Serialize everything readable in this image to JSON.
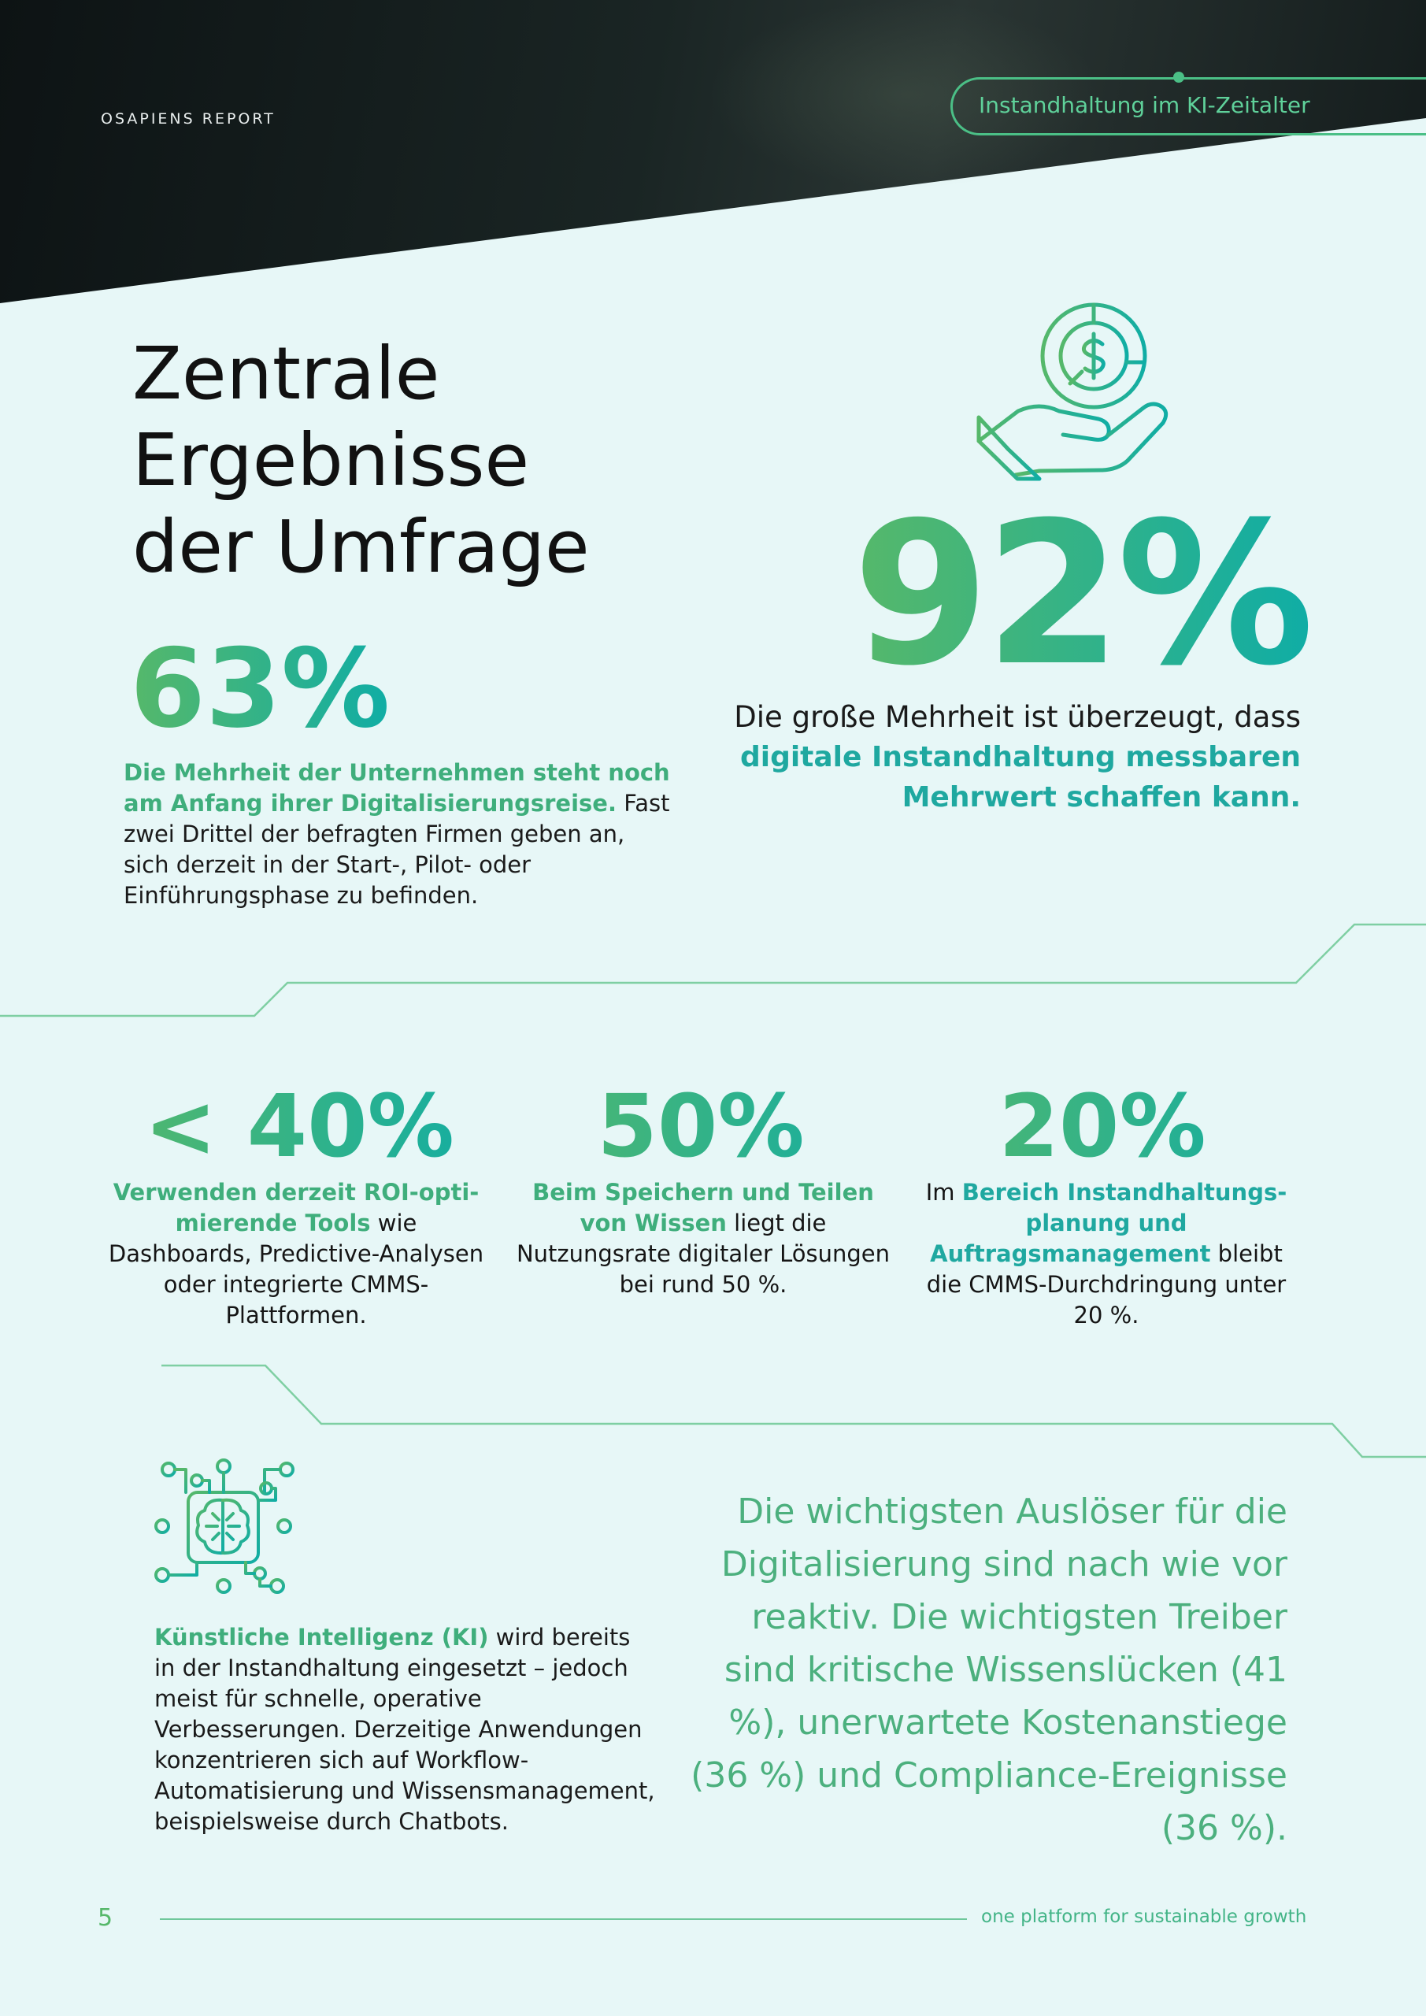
{
  "header": {
    "kicker": "OSAPIENS REPORT",
    "tag": "Instandhaltung im KI-Zeitalter"
  },
  "title_lines": [
    "Zentrale",
    "Ergebnisse",
    "der Umfrage"
  ],
  "stat_63": {
    "value": "63%",
    "highlight": "Die Mehrheit der Unternehmen steht noch am Anfang ihrer Digitalisierungsreise.",
    "text": " Fast zwei Drittel der befragten Firmen geben an, sich derzeit in der Start-, Pilot- oder Einführungs­phase zu befinden."
  },
  "stat_92": {
    "value": "92%",
    "text": "Die große Mehrheit ist überzeugt, dass ",
    "highlight": "digitale Instandhaltung mess­baren Mehrwert schaffen kann."
  },
  "stats_row": [
    {
      "value": "< 40%",
      "highlight": "Verwenden derzeit ROI-opti­mierende Tools",
      "text": " wie Dashboards, Predictive-Analysen oder inte­grierte CMMS-Plattformen."
    },
    {
      "value": "50%",
      "highlight": "Beim Speichern und Teilen von Wissen",
      "text": " liegt die Nutzungsrate digitaler Lösungen bei rund 50 %."
    },
    {
      "value": "20%",
      "prefix": "Im ",
      "highlight": "Bereich Instandhaltungs­planung und Auftragsmanage­ment",
      "text": " bleibt die CMMS-Durch­dringung unter 20 %."
    }
  ],
  "ki": {
    "highlight": "Künstliche Intelligenz (KI)",
    "text": " wird bere­its in der Instandhaltung eingesetzt – jedoch meist für schnelle, operative Verbesserungen. Derzeitige Anwend­ungen konzentrieren sich auf Workflow-Automatisierung und Wissensmanage­ment, beispielsweise durch Chatbots."
  },
  "quote": "Die wichtigsten Auslöser für die Digitalisierung sind nach wie vor reaktiv. Die wichtigsten Treiber sind kritische Wissenslücken (41 %), unerwartete Kostenanstiege (36 %) und Compliance-Ereignisse (36 %).",
  "footer": {
    "page_number": "5",
    "tagline": "one platform for sustainable growth"
  },
  "colors": {
    "background": "#e7f7f7",
    "accent_green": "#56b86a",
    "accent_teal": "#10ada5"
  },
  "icons": [
    "money-hand-icon",
    "brain-chip-icon"
  ]
}
